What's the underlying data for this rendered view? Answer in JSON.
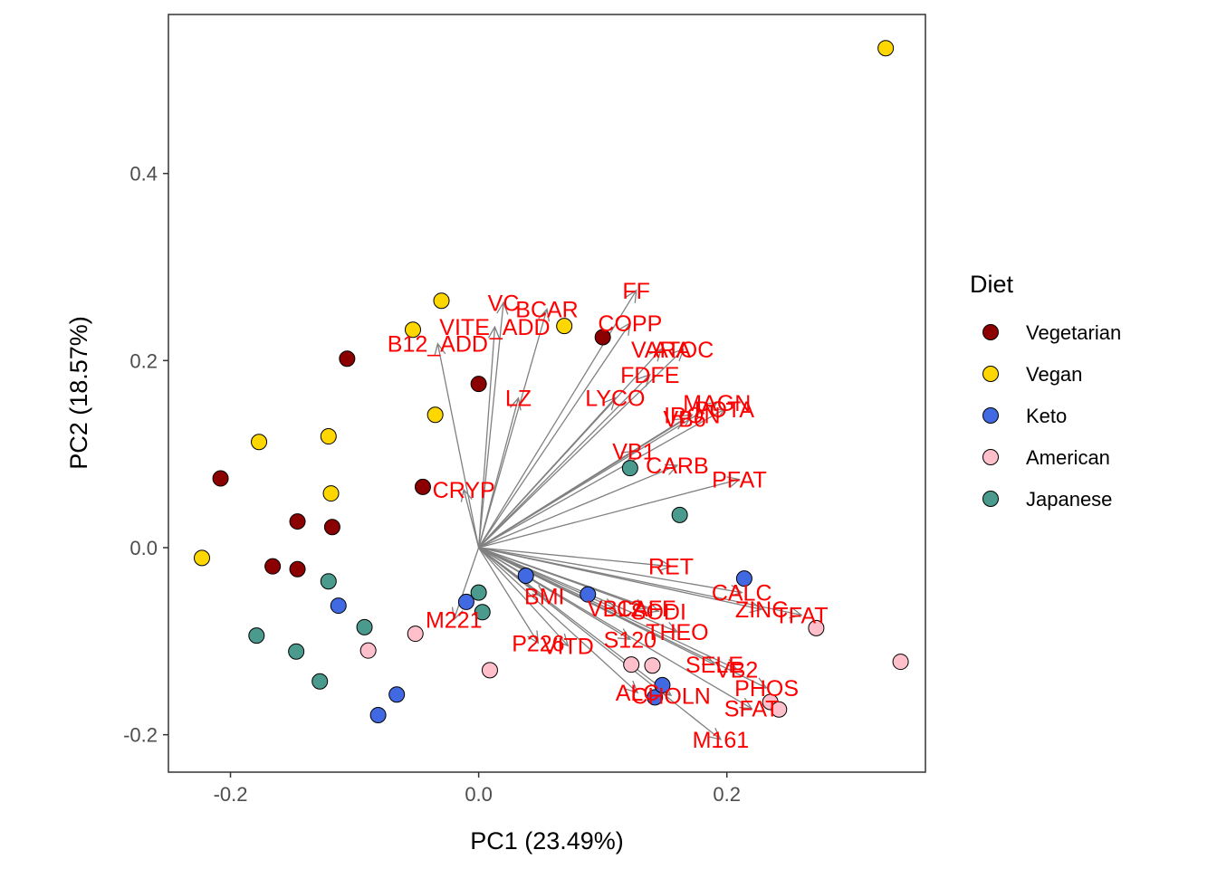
{
  "chart_data": {
    "type": "scatter",
    "subtype": "pca-biplot",
    "title": "",
    "xlabel": "PC1 (23.49%)",
    "ylabel": "PC2 (18.57%)",
    "xlim": [
      -0.25,
      0.36
    ],
    "ylim": [
      -0.24,
      0.57
    ],
    "x_ticks": [
      -0.2,
      0.0,
      0.2
    ],
    "x_tick_labels": [
      "-0.2",
      "0.0",
      "0.2"
    ],
    "y_ticks": [
      -0.2,
      0.0,
      0.2,
      0.4
    ],
    "y_tick_labels": [
      "-0.2",
      "0.0",
      "0.2",
      "0.4"
    ],
    "grid": false,
    "legend": {
      "title": "Diet",
      "position": "right",
      "entries": [
        {
          "name": "Vegetarian",
          "color": "#8B0000"
        },
        {
          "name": "Vegan",
          "color": "#FFD700"
        },
        {
          "name": "Keto",
          "color": "#4169E1"
        },
        {
          "name": "American",
          "color": "#FFC0CB"
        },
        {
          "name": "Japanese",
          "color": "#4A9A8E"
        }
      ]
    },
    "series": [
      {
        "name": "Vegetarian",
        "color": "#8B0000",
        "points": [
          [
            -0.208,
            0.074
          ],
          [
            -0.106,
            0.202
          ],
          [
            -0.166,
            -0.02
          ],
          [
            -0.146,
            0.028
          ],
          [
            -0.146,
            -0.023
          ],
          [
            -0.118,
            0.022
          ],
          [
            -0.045,
            0.065
          ],
          [
            0.0,
            0.175
          ],
          [
            0.1,
            0.225
          ]
        ]
      },
      {
        "name": "Vegan",
        "color": "#FFD700",
        "points": [
          [
            -0.223,
            -0.011
          ],
          [
            -0.177,
            0.113
          ],
          [
            -0.121,
            0.119
          ],
          [
            -0.119,
            0.058
          ],
          [
            -0.053,
            0.233
          ],
          [
            -0.035,
            0.142
          ],
          [
            -0.03,
            0.264
          ],
          [
            0.069,
            0.237
          ],
          [
            0.328,
            0.534
          ]
        ]
      },
      {
        "name": "Keto",
        "color": "#4169E1",
        "points": [
          [
            -0.113,
            -0.062
          ],
          [
            -0.081,
            -0.179
          ],
          [
            -0.066,
            -0.157
          ],
          [
            -0.01,
            -0.058
          ],
          [
            0.038,
            -0.03
          ],
          [
            0.088,
            -0.05
          ],
          [
            0.142,
            -0.16
          ],
          [
            0.148,
            -0.147
          ],
          [
            0.214,
            -0.033
          ]
        ]
      },
      {
        "name": "American",
        "color": "#FFC0CB",
        "points": [
          [
            -0.089,
            -0.11
          ],
          [
            -0.051,
            -0.092
          ],
          [
            0.009,
            -0.131
          ],
          [
            0.123,
            -0.125
          ],
          [
            0.14,
            -0.126
          ],
          [
            0.235,
            -0.165
          ],
          [
            0.242,
            -0.173
          ],
          [
            0.272,
            -0.086
          ],
          [
            0.34,
            -0.122
          ]
        ]
      },
      {
        "name": "Japanese",
        "color": "#4A9A8E",
        "points": [
          [
            -0.179,
            -0.094
          ],
          [
            -0.147,
            -0.111
          ],
          [
            -0.128,
            -0.143
          ],
          [
            -0.121,
            -0.036
          ],
          [
            -0.092,
            -0.085
          ],
          [
            0.0,
            -0.048
          ],
          [
            0.003,
            -0.069
          ],
          [
            0.122,
            0.085
          ],
          [
            0.162,
            0.035
          ]
        ]
      }
    ],
    "loadings": {
      "color": "#808080",
      "label_color": "#FF0000",
      "items": [
        {
          "label": "FF",
          "x": 0.127,
          "y": 0.275
        },
        {
          "label": "BCAR",
          "x": 0.055,
          "y": 0.255
        },
        {
          "label": "VC",
          "x": 0.02,
          "y": 0.262
        },
        {
          "label": "COPP",
          "x": 0.122,
          "y": 0.24
        },
        {
          "label": "VITE_ADD",
          "x": 0.013,
          "y": 0.236
        },
        {
          "label": "B12_ADD",
          "x": -0.033,
          "y": 0.218
        },
        {
          "label": "VARA",
          "x": 0.147,
          "y": 0.212
        },
        {
          "label": "ATOC",
          "x": 0.165,
          "y": 0.212
        },
        {
          "label": "FDFE",
          "x": 0.138,
          "y": 0.185
        },
        {
          "label": "LZ",
          "x": 0.032,
          "y": 0.16
        },
        {
          "label": "LYCO",
          "x": 0.11,
          "y": 0.16
        },
        {
          "label": "MAGN",
          "x": 0.192,
          "y": 0.155
        },
        {
          "label": "POTA",
          "x": 0.198,
          "y": 0.148
        },
        {
          "label": "IRON",
          "x": 0.172,
          "y": 0.142
        },
        {
          "label": "VB6",
          "x": 0.166,
          "y": 0.138
        },
        {
          "label": "VB1",
          "x": 0.125,
          "y": 0.103
        },
        {
          "label": "CARB",
          "x": 0.16,
          "y": 0.088
        },
        {
          "label": "PFAT",
          "x": 0.21,
          "y": 0.073
        },
        {
          "label": "CRYP",
          "x": -0.012,
          "y": 0.062
        },
        {
          "label": "RET",
          "x": 0.155,
          "y": -0.02
        },
        {
          "label": "CALC",
          "x": 0.212,
          "y": -0.048
        },
        {
          "label": "ZINC",
          "x": 0.228,
          "y": -0.066
        },
        {
          "label": "TFAT",
          "x": 0.26,
          "y": -0.072
        },
        {
          "label": "BMI",
          "x": 0.053,
          "y": -0.052
        },
        {
          "label": "VB12",
          "x": 0.11,
          "y": -0.065
        },
        {
          "label": "CAFF",
          "x": 0.135,
          "y": -0.065
        },
        {
          "label": "SODI",
          "x": 0.145,
          "y": -0.068
        },
        {
          "label": "THEO",
          "x": 0.16,
          "y": -0.09
        },
        {
          "label": "M221",
          "x": -0.02,
          "y": -0.077
        },
        {
          "label": "S120",
          "x": 0.122,
          "y": -0.098
        },
        {
          "label": "P226",
          "x": 0.048,
          "y": -0.102
        },
        {
          "label": "VITD",
          "x": 0.072,
          "y": -0.105
        },
        {
          "label": "SELE",
          "x": 0.19,
          "y": -0.125
        },
        {
          "label": "VB2",
          "x": 0.208,
          "y": -0.13
        },
        {
          "label": "PHOS",
          "x": 0.232,
          "y": -0.15
        },
        {
          "label": "ALC",
          "x": 0.128,
          "y": -0.155
        },
        {
          "label": "CHOLN",
          "x": 0.155,
          "y": -0.158
        },
        {
          "label": "SFAT",
          "x": 0.22,
          "y": -0.172
        },
        {
          "label": "M161",
          "x": 0.195,
          "y": -0.205
        }
      ]
    }
  }
}
